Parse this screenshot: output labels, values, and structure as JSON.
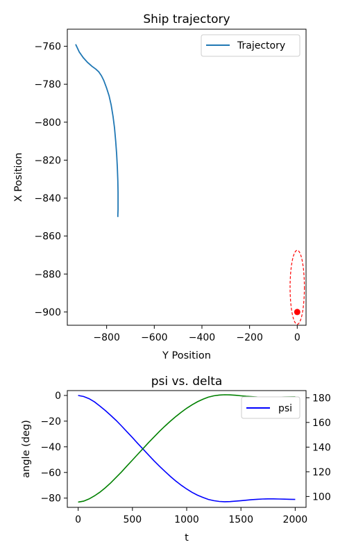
{
  "chart_data": [
    {
      "type": "line",
      "title": "Ship trajectory",
      "xlabel": "Y Position",
      "ylabel": "X Position",
      "xlim": [
        -965,
        37
      ],
      "ylim": [
        -907,
        -751
      ],
      "xticks": [
        -800,
        -600,
        -400,
        -200,
        0
      ],
      "yticks": [
        -760,
        -780,
        -800,
        -820,
        -840,
        -860,
        -880,
        -900
      ],
      "grid": false,
      "legend": {
        "position": "upper-right",
        "entries": [
          "Trajectory"
        ]
      },
      "series": [
        {
          "name": "Trajectory",
          "color": "#1f77b4",
          "style": "solid",
          "x": [
            -930,
            -915,
            -898,
            -880,
            -862,
            -846,
            -833,
            -822,
            -812,
            -800,
            -790,
            -781,
            -773,
            -767,
            -762,
            -758,
            -755,
            -753,
            -752,
            -752,
            -752,
            -753,
            -753
          ],
          "y": [
            -759,
            -763,
            -766,
            -768.5,
            -770.5,
            -772,
            -773.5,
            -775.5,
            -778,
            -782,
            -786,
            -791,
            -797,
            -803,
            -810,
            -817,
            -824,
            -831,
            -837,
            -842,
            -846,
            -849,
            -850
          ]
        },
        {
          "name": "",
          "color": "#ff0000",
          "style": "dashed",
          "shape": "ellipse",
          "center": [
            0,
            -887
          ],
          "radii": [
            30,
            19.5
          ]
        },
        {
          "name": "",
          "color": "#ff0000",
          "style": "marker",
          "x": [
            0
          ],
          "y": [
            -900
          ]
        }
      ]
    },
    {
      "type": "line",
      "title": "psi vs. delta",
      "xlabel": "t",
      "ylabel": "angle (deg)",
      "ylabel_right": "",
      "xlim": [
        -100,
        2100
      ],
      "ylim": [
        -87.2,
        3.8
      ],
      "ylim_right": [
        91.2,
        185.8
      ],
      "xticks": [
        0,
        500,
        1000,
        1500,
        2000
      ],
      "yticks": [
        0,
        -20,
        -40,
        -60,
        -80
      ],
      "yticks_right": [
        180,
        160,
        140,
        120,
        100
      ],
      "grid": false,
      "legend": {
        "position": "upper-right",
        "entries": [
          "psi"
        ]
      },
      "series": [
        {
          "name": "psi",
          "axis": "left",
          "color": "#0000ff",
          "t": [
            0,
            50,
            100,
            150,
            200,
            250,
            300,
            350,
            400,
            450,
            500,
            550,
            600,
            650,
            700,
            750,
            800,
            850,
            900,
            950,
            1000,
            1050,
            1100,
            1150,
            1200,
            1250,
            1300,
            1350,
            1400,
            1450,
            1500,
            1550,
            1600,
            1650,
            1700,
            1750,
            1800,
            1850,
            1900,
            1950,
            2000
          ],
          "values": [
            0,
            -0.8,
            -2.5,
            -5.0,
            -8.2,
            -11.7,
            -15.5,
            -19.5,
            -23.8,
            -28.3,
            -32.8,
            -37.5,
            -42.0,
            -46.5,
            -51.0,
            -55.2,
            -59.2,
            -63.1,
            -66.7,
            -70.0,
            -72.9,
            -75.5,
            -77.7,
            -79.5,
            -81.0,
            -82.0,
            -82.6,
            -82.8,
            -82.7,
            -82.4,
            -82.0,
            -81.6,
            -81.2,
            -80.9,
            -80.7,
            -80.6,
            -80.6,
            -80.7,
            -80.8,
            -80.9,
            -81.0
          ]
        },
        {
          "name": "",
          "axis": "right",
          "color": "#008000",
          "t": [
            0,
            50,
            100,
            150,
            200,
            250,
            300,
            350,
            400,
            450,
            500,
            550,
            600,
            650,
            700,
            750,
            800,
            850,
            900,
            950,
            1000,
            1050,
            1100,
            1150,
            1200,
            1250,
            1300,
            1350,
            1400,
            1450,
            1500,
            1550,
            1600,
            1650,
            1700,
            1750,
            1800,
            1850,
            1900,
            1950,
            2000
          ],
          "values": [
            95.5,
            96.2,
            98.0,
            100.5,
            103.5,
            107.0,
            111.0,
            115.5,
            120.0,
            124.8,
            129.5,
            134.3,
            139.0,
            143.8,
            148.3,
            152.8,
            157.0,
            161.0,
            164.8,
            168.3,
            171.5,
            174.3,
            176.8,
            178.8,
            180.5,
            181.6,
            182.2,
            182.4,
            182.3,
            182.0,
            181.6,
            181.2,
            180.9,
            180.6,
            180.5,
            180.4,
            180.4,
            180.5,
            180.6,
            180.7,
            180.8
          ]
        }
      ]
    }
  ]
}
